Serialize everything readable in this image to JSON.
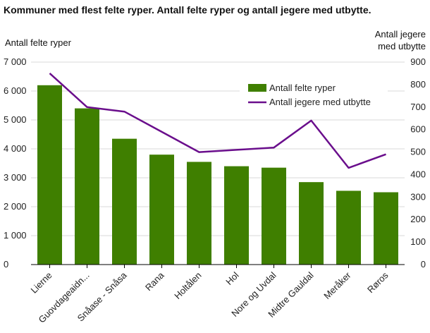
{
  "chart_data": {
    "type": "bar",
    "title": "Kommuner med flest felte ryper. Antall felte ryper og antall jegere med utbytte.",
    "categories": [
      "Lierne",
      "Guovdageaidn...",
      "Snåase - Snåsa",
      "Rana",
      "Holtålen",
      "Hol",
      "Nore og Uvdal",
      "Midtre Gauldal",
      "Meråker",
      "Røros"
    ],
    "y_left": {
      "label": "Antall felte ryper",
      "ylim": [
        0,
        7000
      ],
      "ticks": [
        0,
        1000,
        2000,
        3000,
        4000,
        5000,
        6000,
        7000
      ],
      "tick_labels": [
        "0",
        "1 000",
        "2 000",
        "3 000",
        "4 000",
        "5 000",
        "6 000",
        "7 000"
      ]
    },
    "y_right": {
      "label_lines": [
        "Antall jegere",
        "med utbytte"
      ],
      "ylim": [
        0,
        900
      ],
      "ticks": [
        0,
        100,
        200,
        300,
        400,
        500,
        600,
        700,
        800,
        900
      ],
      "tick_labels": [
        "0",
        "100",
        "200",
        "300",
        "400",
        "500",
        "600",
        "700",
        "800",
        "900"
      ]
    },
    "series": [
      {
        "name": "Antall felte ryper",
        "type": "bar",
        "axis": "left",
        "color": "#3f7f00",
        "values": [
          6200,
          5400,
          4350,
          3800,
          3550,
          3400,
          3350,
          2850,
          2550,
          2500
        ]
      },
      {
        "name": "Antall jegere med utbytte",
        "type": "line",
        "axis": "right",
        "color": "#6a0e8c",
        "values": [
          850,
          700,
          680,
          590,
          500,
          510,
          520,
          640,
          430,
          490
        ]
      }
    ],
    "grid": true,
    "legend_position": "top-right"
  }
}
